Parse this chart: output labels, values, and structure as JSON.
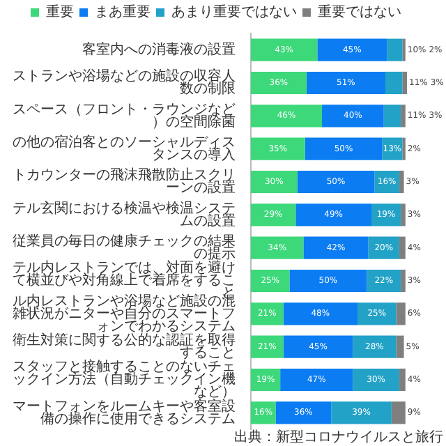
{
  "chart_data": {
    "type": "bar",
    "orientation": "horizontal",
    "stacked": true,
    "legend": "top",
    "tick_labels": "y",
    "categories": [
      "客室内への消毒液の設置",
      "ストランや浴場などの施設の収容人数の制限",
      "スペース（フロント・ラウンジなど）の空間除菌",
      "の他の宿泊客とのソーシャルディスタンスの導入",
      "トカウンターの飛沫飛散防止スクリーンの設置",
      "テル玄関における検温や検温システムの設置",
      "従業員の毎日の健康チェックの結果の提示",
      "テル内レストランでは、対面を避けて横並びや対角線上で着席をすること",
      "ル内レストランや浴場など施設の混雑状況がニターや自分のスマートフォンでわかるシステム",
      "衛生対策に関する公的な認証を取得すること",
      "スタッフと接触することのないチェックイン方法（自動チェックイン機など）",
      "マートフォンをルームキーや客室設備の操作に使用できるシステム"
    ],
    "series": [
      {
        "name": "重要",
        "color": "#3cd87a",
        "values": [
          43,
          36,
          46,
          35,
          30,
          29,
          34,
          25,
          21,
          21,
          19,
          16
        ],
        "value_labels": [
          "43%",
          "36%",
          "46%",
          "35%",
          "30%",
          "29%",
          "34%",
          "25%",
          "21%",
          "21%",
          "19%",
          "16%"
        ]
      },
      {
        "name": "まあ重要",
        "color": "#0b7cf2",
        "values": [
          45,
          51,
          40,
          50,
          50,
          49,
          42,
          50,
          48,
          45,
          47,
          36
        ],
        "value_labels": [
          "45%",
          "51%",
          "40%",
          "50%",
          "50%",
          "49%",
          "42%",
          "50%",
          "48%",
          "45%",
          "47%",
          "36%"
        ]
      },
      {
        "name": "あまり重要ではない",
        "color": "#22a2c6",
        "values": [
          10,
          11,
          11,
          13,
          16,
          19,
          20,
          22,
          25,
          28,
          30,
          39
        ],
        "value_labels": [
          "10%",
          "11%",
          "11%",
          "13%",
          "16%",
          "19%",
          "20%",
          "22%",
          "25%",
          "28%",
          "30%",
          "39%"
        ]
      },
      {
        "name": "重要ではない",
        "color": "#7f7f7f",
        "values": [
          2,
          3,
          3,
          2,
          3,
          3,
          4,
          3,
          6,
          5,
          4,
          9
        ],
        "value_labels": [
          "2%",
          "3%",
          "3%",
          "2%",
          "3%",
          "3%",
          "4%",
          "3%",
          "6%",
          "5%",
          "4%",
          "9%"
        ]
      }
    ],
    "annotations": [
      "出典：新型コロナウイルスと旅行"
    ]
  }
}
